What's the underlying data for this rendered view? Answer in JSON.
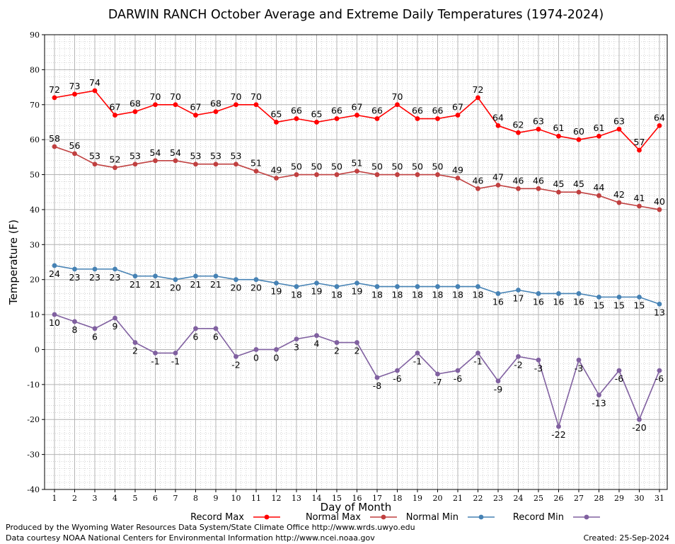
{
  "chart_data": {
    "type": "line",
    "title": "DARWIN RANCH October Average and Extreme Daily Temperatures (1974-2024)",
    "xlabel": "Day of Month",
    "ylabel": "Temperature (F)",
    "ylim": [
      -40,
      90
    ],
    "yticks": [
      -40,
      -30,
      -20,
      -10,
      0,
      10,
      20,
      30,
      40,
      50,
      60,
      70,
      80,
      90
    ],
    "x": [
      1,
      2,
      3,
      4,
      5,
      6,
      7,
      8,
      9,
      10,
      11,
      12,
      13,
      14,
      15,
      16,
      17,
      18,
      19,
      20,
      21,
      22,
      23,
      24,
      25,
      26,
      27,
      28,
      29,
      30,
      31
    ],
    "grid": true,
    "legend_position": "bottom",
    "series": [
      {
        "name": "Record Max",
        "color": "#ff0000",
        "label_position": "above",
        "values": [
          72,
          73,
          74,
          67,
          68,
          70,
          70,
          67,
          68,
          70,
          70,
          65,
          66,
          65,
          66,
          67,
          66,
          70,
          66,
          66,
          67,
          72,
          64,
          62,
          63,
          61,
          60,
          61,
          63,
          57,
          64
        ]
      },
      {
        "name": "Normal Max",
        "color": "#c04040",
        "label_position": "above",
        "values": [
          58,
          56,
          53,
          52,
          53,
          54,
          54,
          53,
          53,
          53,
          51,
          49,
          50,
          50,
          50,
          51,
          50,
          50,
          50,
          50,
          49,
          46,
          47,
          46,
          46,
          45,
          45,
          44,
          42,
          41,
          40
        ]
      },
      {
        "name": "Normal Min",
        "color": "#4682b4",
        "label_position": "below",
        "values": [
          24,
          23,
          23,
          23,
          21,
          21,
          20,
          21,
          21,
          20,
          20,
          19,
          18,
          19,
          18,
          19,
          18,
          18,
          18,
          18,
          18,
          18,
          16,
          17,
          16,
          16,
          16,
          15,
          15,
          15,
          13
        ]
      },
      {
        "name": "Record Min",
        "color": "#8060a0",
        "label_position": "below",
        "values": [
          10,
          8,
          6,
          9,
          2,
          -1,
          -1,
          6,
          6,
          -2,
          0,
          0,
          3,
          4,
          2,
          2,
          -8,
          -6,
          -1,
          -7,
          -6,
          -1,
          -9,
          -2,
          -3,
          -22,
          -3,
          -13,
          -6,
          -20,
          -6
        ]
      }
    ]
  },
  "footer": {
    "produced_by": "Produced by the Wyoming Water Resources Data System/State Climate Office http://www.wrds.uwyo.edu",
    "courtesy": "Data courtesy NOAA National Centers for Environmental Information http://www.ncei.noaa.gov",
    "created": "Created:  25-Sep-2024"
  }
}
